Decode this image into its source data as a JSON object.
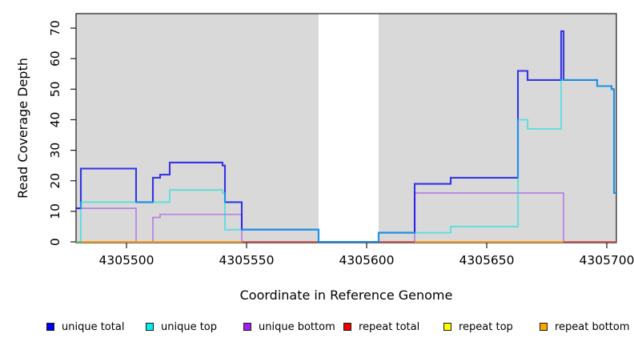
{
  "chart_data": {
    "type": "line",
    "subtype": "step-coverage",
    "title": "",
    "xlabel": "Coordinate in Reference Genome",
    "ylabel": "Read Coverage Depth",
    "xlim": [
      4305479,
      4305704
    ],
    "ylim": [
      0,
      74
    ],
    "x_ticks": [
      4305500,
      4305550,
      4305600,
      4305650,
      4305700
    ],
    "y_ticks": [
      0,
      10,
      20,
      30,
      40,
      50,
      60,
      70
    ],
    "grid": false,
    "plot_bg": "#d9d9d9",
    "frame_color": "#1a1a1a",
    "no_data_region": {
      "from": 4305580,
      "to": 4305605,
      "fill": "#ffffff"
    },
    "legend_position": "bottom",
    "legend": [
      {
        "label": "unique total",
        "color": "#0000EE"
      },
      {
        "label": "unique top",
        "color": "#00EEEE"
      },
      {
        "label": "unique bottom",
        "color": "#A020F0"
      },
      {
        "label": "repeat total",
        "color": "#EE0000"
      },
      {
        "label": "repeat top",
        "color": "#FFFF00"
      },
      {
        "label": "repeat bottom",
        "color": "#FFA500"
      }
    ],
    "series": [
      {
        "name": "unique bottom",
        "line_color": "rgba(150,40,235,0.5)",
        "line_width": 1.7,
        "points": [
          [
            4305479,
            11
          ],
          [
            4305504,
            0
          ],
          [
            4305511,
            8
          ],
          [
            4305514,
            9
          ],
          [
            4305548,
            0
          ],
          [
            4305620,
            16
          ],
          [
            4305682,
            0
          ],
          [
            4305704,
            0
          ]
        ]
      },
      {
        "name": "repeat top",
        "line_color": "rgba(255,255,0,0.9)",
        "line_width": 1.6,
        "points": [
          [
            4305479,
            0
          ],
          [
            4305704,
            0
          ]
        ]
      },
      {
        "name": "repeat total",
        "line_color": "rgba(205,25,85,0.75)",
        "line_width": 1.8,
        "points": [
          [
            4305479,
            0
          ],
          [
            4305704,
            0
          ]
        ]
      },
      {
        "name": "repeat bottom",
        "line_color": "rgba(255,158,10,0.95)",
        "line_width": 2,
        "points": [
          [
            4305479,
            0
          ],
          [
            4305548,
            0
          ],
          null,
          [
            4305620,
            0
          ],
          [
            4305682,
            0
          ]
        ]
      },
      {
        "name": "unique total",
        "line_color": "rgba(10,10,235,0.8)",
        "line_width": 2.1,
        "points": [
          [
            4305479,
            11
          ],
          [
            4305481,
            24
          ],
          [
            4305504,
            13
          ],
          [
            4305511,
            21
          ],
          [
            4305514,
            22
          ],
          [
            4305518,
            26
          ],
          [
            4305540,
            25
          ],
          [
            4305541,
            13
          ],
          [
            4305548,
            4
          ],
          [
            4305580,
            0
          ],
          [
            4305605,
            3
          ],
          [
            4305620,
            19
          ],
          [
            4305635,
            21
          ],
          [
            4305663,
            56
          ],
          [
            4305667,
            53
          ],
          [
            4305681,
            69
          ],
          [
            4305682,
            53
          ],
          [
            4305696,
            51
          ],
          [
            4305702,
            50
          ],
          [
            4305703,
            16
          ],
          [
            4305704,
            16
          ]
        ]
      },
      {
        "name": "unique top",
        "line_color": "rgba(0,225,225,0.55)",
        "line_width": 2,
        "points": [
          [
            4305479,
            0
          ],
          [
            4305481,
            13
          ],
          [
            4305518,
            17
          ],
          [
            4305540,
            16
          ],
          [
            4305541,
            4
          ],
          [
            4305580,
            0
          ],
          [
            4305605,
            3
          ],
          [
            4305635,
            5
          ],
          [
            4305663,
            40
          ],
          [
            4305667,
            37
          ],
          [
            4305681,
            53
          ],
          [
            4305696,
            51
          ],
          [
            4305702,
            50
          ],
          [
            4305703,
            16
          ],
          [
            4305704,
            16
          ]
        ]
      }
    ]
  }
}
